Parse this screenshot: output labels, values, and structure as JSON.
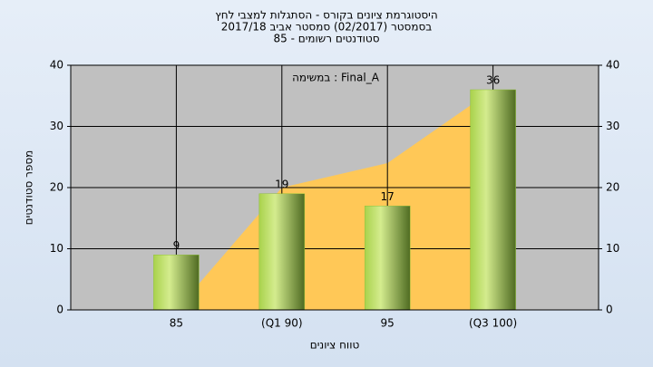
{
  "chart_data": {
    "type": "bar",
    "title": "היסטוגרמת ציונים בקורס - הסתגלות למצבי לחץ",
    "subtitle": "בסמסטר  (02/2017)  סמסטר אביב 2017/18",
    "subtitle2": "סטודנטים רשומים - 85",
    "annotation": "במשימה : Final_A",
    "x_label": "טווח ציונים",
    "y_label": "מספר סטודנטים",
    "categories": [
      "85",
      "(Q1 90)",
      "95",
      "(Q3 100)"
    ],
    "values": [
      9,
      19,
      17,
      36
    ],
    "color": "#8fbf3a",
    "area": {
      "color": "#ffc857",
      "values": [
        0,
        20,
        24,
        36
      ]
    },
    "ylim": [
      0,
      40
    ],
    "yticks": [
      0,
      10,
      20,
      30,
      40
    ],
    "grid": true
  }
}
